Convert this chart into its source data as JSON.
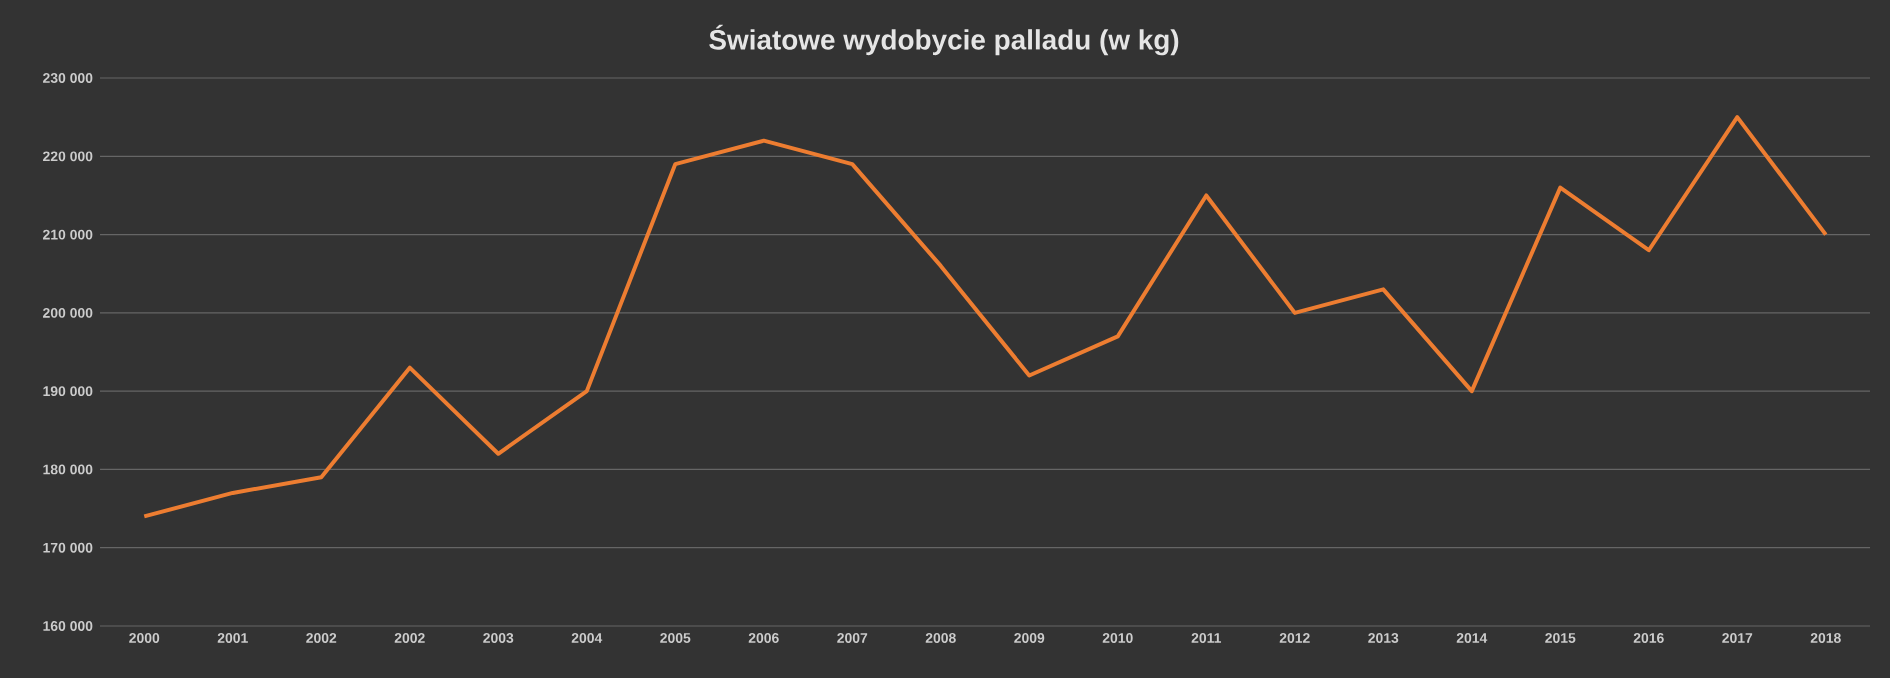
{
  "chart_data": {
    "type": "line",
    "title": "Światowe wydobycie palladu (w kg)",
    "categories": [
      "2000",
      "2001",
      "2002",
      "2002",
      "2003",
      "2004",
      "2005",
      "2006",
      "2007",
      "2008",
      "2009",
      "2010",
      "2011",
      "2012",
      "2013",
      "2014",
      "2015",
      "2016",
      "2017",
      "2018"
    ],
    "series": [
      {
        "color": "#ed7d31",
        "values": [
          174000,
          177000,
          179000,
          193000,
          182000,
          190000,
          219000,
          222000,
          219000,
          206000,
          192000,
          197000,
          215000,
          200000,
          203000,
          190000,
          216000,
          208000,
          225000,
          210000
        ]
      }
    ],
    "ylim": [
      160000,
      230000
    ],
    "yticks": [
      {
        "value": 160000,
        "label": "160 000"
      },
      {
        "value": 170000,
        "label": "170 000"
      },
      {
        "value": 180000,
        "label": "180 000"
      },
      {
        "value": 190000,
        "label": "190 000"
      },
      {
        "value": 200000,
        "label": "200 000"
      },
      {
        "value": 210000,
        "label": "210 000"
      },
      {
        "value": 220000,
        "label": "220 000"
      },
      {
        "value": 230000,
        "label": "230 000"
      }
    ],
    "grid": "y",
    "legend": false,
    "marker": "none",
    "line_style": "solid"
  }
}
